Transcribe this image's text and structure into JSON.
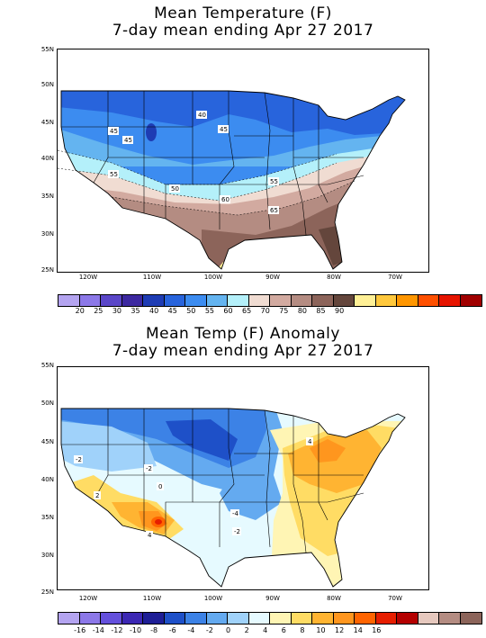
{
  "panels": [
    {
      "title_line1": "Mean Temperature (F)",
      "title_line2": "7-day mean ending Apr 27 2017",
      "lat_labels": [
        "55N",
        "50N",
        "45N",
        "40N",
        "35N",
        "30N",
        "25N"
      ],
      "lon_labels": [
        "120W",
        "110W",
        "100W",
        "90W",
        "80W",
        "70W"
      ],
      "contour_labels": [
        "40",
        "45",
        "45",
        "45",
        "50",
        "55",
        "55",
        "60",
        "65"
      ],
      "colorbar_labels": [
        "20",
        "25",
        "30",
        "35",
        "40",
        "45",
        "50",
        "55",
        "60",
        "65",
        "70",
        "75",
        "80",
        "85",
        "90"
      ],
      "colorbar_colors": [
        "#b4a4f0",
        "#8c78e8",
        "#5a46c8",
        "#3c28a0",
        "#1e3cb4",
        "#2864dc",
        "#3c8cf0",
        "#64b4f0",
        "#b4f0fa",
        "#f0dcd2",
        "#d2aaa0",
        "#b48c82",
        "#8c645a",
        "#64463c",
        "#fff096",
        "#ffc83c",
        "#ff9600",
        "#ff5000",
        "#e61400",
        "#a00000"
      ]
    },
    {
      "title_line1": "Mean Temp (F) Anomaly",
      "title_line2": "7-day mean ending Apr 27 2017",
      "lat_labels": [
        "55N",
        "50N",
        "45N",
        "40N",
        "35N",
        "30N",
        "25N"
      ],
      "lon_labels": [
        "120W",
        "110W",
        "100W",
        "90W",
        "80W",
        "70W"
      ],
      "contour_labels": [
        "-2",
        "-2",
        "0",
        "-4",
        "-2",
        "4",
        "4",
        "2"
      ],
      "colorbar_labels": [
        "-16",
        "-14",
        "-12",
        "-10",
        "-8",
        "-6",
        "-4",
        "-2",
        "0",
        "2",
        "4",
        "6",
        "8",
        "10",
        "12",
        "14",
        "16"
      ],
      "colorbar_colors": [
        "#b4a4f0",
        "#8c78e8",
        "#6450dc",
        "#3c28b4",
        "#1e1e96",
        "#1e50c8",
        "#3c82e6",
        "#64aaf0",
        "#a0d2fa",
        "#e6faff",
        "#fff5b4",
        "#ffdc64",
        "#ffb432",
        "#ff961e",
        "#ff6400",
        "#e61e00",
        "#b40000",
        "#e6c8be",
        "#b48c82",
        "#8c645a"
      ]
    }
  ]
}
